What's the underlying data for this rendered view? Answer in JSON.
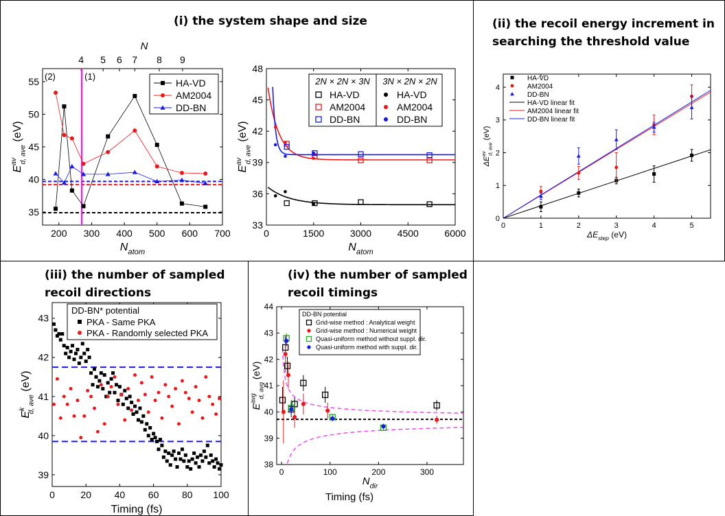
{
  "panels": {
    "p1": {
      "title": "(i) the system shape and size"
    },
    "p2": {
      "title_line1": "(ii) the recoil energy increment in",
      "title_line2": "searching the threshold value"
    },
    "p3": {
      "title_line1": "(iii) the number of sampled",
      "title_line2": "recoil directions"
    },
    "p4": {
      "title_line1": "(iv) the number of sampled",
      "title_line2": "recoil timings"
    }
  },
  "colors": {
    "black": "#000000",
    "red": "#e8191c",
    "blue": "#1a1adc",
    "magenta": "#e21bd8",
    "pink": "#ee55ee",
    "green": "#22aa22",
    "dashblue": "#1a1adc"
  },
  "chart_data": [
    {
      "id": "c1",
      "type": "line",
      "xlabel": "N",
      "xlabel_sub": "atom",
      "ylabel": "E",
      "ylabel_sub": "d, ave",
      "ylabel_sup": "av",
      "ylabel_unit": "(eV)",
      "xlim": [
        150,
        700
      ],
      "ylim": [
        33,
        57
      ],
      "xticks": [
        200,
        300,
        400,
        500,
        600,
        700
      ],
      "yticks": [
        35,
        40,
        45,
        50,
        55
      ],
      "top_axis": {
        "label": "N",
        "ticks": [
          {
            "x": 268,
            "label": "4"
          },
          {
            "x": 335,
            "label": "5"
          },
          {
            "x": 385,
            "label": "6"
          },
          {
            "x": 432,
            "label": "7"
          },
          {
            "x": 507,
            "label": "8"
          },
          {
            "x": 578,
            "label": "9"
          }
        ]
      },
      "region_labels": [
        "(2)",
        "(1)"
      ],
      "vline_x": 270,
      "hlines": [
        {
          "y": 34.9,
          "color": "black"
        },
        {
          "y": 39.2,
          "color": "red"
        },
        {
          "y": 39.7,
          "color": "blue"
        }
      ],
      "series": [
        {
          "name": "HA-VD",
          "color": "black",
          "marker": "square",
          "x": [
            190,
            216,
            240,
            275,
            350,
            432,
            500,
            576,
            648
          ],
          "y": [
            35.5,
            51.2,
            38.3,
            35.9,
            46.6,
            52.8,
            45.3,
            36.3,
            35.8
          ]
        },
        {
          "name": "AM2004",
          "color": "red",
          "marker": "circle",
          "x": [
            190,
            216,
            240,
            275,
            350,
            432,
            500,
            576,
            648
          ],
          "y": [
            53.3,
            46.8,
            46.3,
            42.4,
            44.2,
            47.5,
            42.0,
            41.0,
            40.9
          ]
        },
        {
          "name": "DD-BN",
          "color": "blue",
          "marker": "triangle",
          "x": [
            190,
            216,
            240,
            275,
            350,
            432,
            500,
            576,
            648
          ],
          "y": [
            40.9,
            39.5,
            42.0,
            40.8,
            40.8,
            41.1,
            39.7,
            39.9,
            39.4
          ]
        }
      ]
    },
    {
      "id": "c2",
      "type": "scatter",
      "xlabel": "N",
      "xlabel_sub": "atom",
      "ylabel": "E",
      "ylabel_sub": "d, ave",
      "ylabel_sup": "av",
      "ylabel_unit": "(eV)",
      "xlim": [
        0,
        6000
      ],
      "ylim": [
        33,
        48
      ],
      "xticks": [
        0,
        1500,
        3000,
        4500,
        6000
      ],
      "yticks": [
        33,
        36,
        39,
        42,
        45,
        48
      ],
      "legend_header": [
        "2N × 2N × 3N",
        "3N × 2N × 2N"
      ],
      "series": [
        {
          "name": "HA-VD",
          "color": "black",
          "marker": "open-square",
          "group": 1,
          "x": [
            648,
            1536,
            3000,
            5184
          ],
          "y": [
            35.1,
            35.1,
            35.2,
            35.0
          ]
        },
        {
          "name": "AM2004",
          "color": "red",
          "marker": "open-square",
          "group": 1,
          "x": [
            648,
            1536,
            3000,
            5184
          ],
          "y": [
            40.8,
            39.6,
            39.2,
            39.2
          ]
        },
        {
          "name": "DD-BN",
          "color": "blue",
          "marker": "open-square",
          "group": 1,
          "x": [
            648,
            1536,
            3000,
            5184
          ],
          "y": [
            40.5,
            39.9,
            39.8,
            39.7
          ]
        },
        {
          "name": "HA-VD",
          "color": "black",
          "marker": "dot",
          "group": 2,
          "x": [
            288,
            600,
            1500
          ],
          "y": [
            35.8,
            36.2,
            35.0
          ]
        },
        {
          "name": "AM2004",
          "color": "red",
          "marker": "dot",
          "group": 2,
          "x": [
            288,
            600,
            1500
          ],
          "y": [
            42.4,
            40.9,
            39.4
          ]
        },
        {
          "name": "DD-BN",
          "color": "blue",
          "marker": "dot",
          "group": 2,
          "x": [
            288,
            600,
            1500
          ],
          "y": [
            40.7,
            39.6,
            39.9
          ]
        }
      ],
      "fits": [
        {
          "color": "black",
          "a": 34.95,
          "b": 1.8,
          "tau": 700
        },
        {
          "color": "red",
          "a": 39.25,
          "b": 8.0,
          "tau": 350
        },
        {
          "color": "blue",
          "a": 39.75,
          "b": 60,
          "tau": 90
        }
      ]
    },
    {
      "id": "c3",
      "type": "scatter",
      "xlabel": "ΔE",
      "xlabel_sub": "step",
      "xlabel_unit": "(eV)",
      "ylabel": "ΔE",
      "ylabel_sub": "d, ave",
      "ylabel_sup": "av",
      "ylabel_unit": "(eV)",
      "xlim": [
        0,
        5.5
      ],
      "ylim": [
        0,
        4.4
      ],
      "xticks": [
        0,
        1,
        2,
        3,
        4,
        5
      ],
      "yticks": [
        0,
        1,
        2,
        3,
        4
      ],
      "series": [
        {
          "name": "HA-VD",
          "color": "black",
          "marker": "square",
          "x": [
            1,
            2,
            3,
            4,
            5
          ],
          "y": [
            0.35,
            0.77,
            1.15,
            1.35,
            1.92
          ],
          "err": [
            0.15,
            0.12,
            0.1,
            0.25,
            0.18
          ]
        },
        {
          "name": "AM2004",
          "color": "red",
          "marker": "circle",
          "x": [
            1,
            2,
            3,
            4,
            5
          ],
          "y": [
            0.82,
            1.38,
            1.55,
            2.85,
            3.72
          ],
          "err": [
            0.15,
            0.2,
            0.45,
            0.3,
            0.35
          ]
        },
        {
          "name": "DD-BN",
          "color": "blue",
          "marker": "triangle",
          "x": [
            1,
            2,
            3,
            4,
            5
          ],
          "y": [
            0.67,
            1.9,
            2.4,
            2.78,
            3.38
          ],
          "err": [
            0.1,
            0.25,
            0.3,
            0.15,
            0.35
          ]
        }
      ],
      "fits": [
        {
          "name": "HA-VD linear fit",
          "color": "black",
          "slope": 0.38
        },
        {
          "name": "AM2004 linear fit",
          "color": "red",
          "slope": 0.7
        },
        {
          "name": "DD-BN linear fit",
          "color": "blue",
          "slope": 0.71
        }
      ]
    },
    {
      "id": "c4",
      "type": "scatter",
      "xlabel": "Timing (fs)",
      "ylabel": "E",
      "ylabel_sub": "d, ave",
      "ylabel_sup": "k",
      "ylabel_unit": "(eV)",
      "xlim": [
        0,
        100
      ],
      "ylim": [
        38.7,
        43.4
      ],
      "xticks": [
        0,
        20,
        40,
        60,
        80,
        100
      ],
      "yticks": [
        39,
        40,
        41,
        42,
        43
      ],
      "legend_title": "DD-BN* potential",
      "hlines": [
        {
          "y": 41.75,
          "color": "blue"
        },
        {
          "y": 39.85,
          "color": "blue"
        }
      ],
      "series": [
        {
          "name": "PKA - Same PKA",
          "color": "black",
          "marker": "square",
          "x": [
            1,
            2,
            3,
            4,
            5,
            6,
            7,
            8,
            9,
            10,
            11,
            12,
            13,
            14,
            15,
            16,
            17,
            18,
            19,
            20,
            21,
            22,
            23,
            24,
            25,
            26,
            27,
            28,
            29,
            30,
            31,
            32,
            33,
            34,
            35,
            36,
            37,
            38,
            39,
            40,
            41,
            42,
            43,
            44,
            45,
            46,
            47,
            48,
            49,
            50,
            51,
            52,
            53,
            54,
            55,
            56,
            57,
            58,
            59,
            60,
            61,
            62,
            63,
            64,
            65,
            66,
            67,
            68,
            69,
            70,
            71,
            72,
            73,
            74,
            75,
            76,
            77,
            78,
            79,
            80,
            81,
            82,
            83,
            84,
            85,
            86,
            87,
            88,
            89,
            90,
            91,
            92,
            93,
            94,
            95,
            96,
            97,
            98,
            99,
            100
          ],
          "y": [
            42.85,
            42.7,
            42.55,
            42.6,
            42.45,
            42.6,
            42.3,
            42.1,
            42.25,
            42.0,
            42.15,
            42.3,
            41.95,
            42.1,
            42.2,
            41.85,
            42.0,
            42.35,
            42.1,
            41.9,
            42.2,
            42.0,
            41.6,
            41.3,
            41.7,
            41.5,
            41.25,
            41.4,
            41.6,
            41.2,
            41.55,
            41.0,
            41.35,
            41.1,
            41.45,
            41.6,
            41.1,
            41.3,
            40.9,
            41.25,
            41.05,
            40.8,
            41.15,
            40.95,
            40.7,
            41.0,
            40.85,
            40.55,
            40.75,
            40.6,
            40.4,
            40.7,
            40.35,
            40.5,
            40.15,
            40.3,
            40.0,
            40.2,
            39.9,
            40.05,
            39.95,
            39.85,
            39.65,
            39.9,
            39.75,
            39.45,
            39.6,
            39.35,
            39.55,
            39.25,
            39.5,
            39.6,
            39.4,
            39.2,
            39.55,
            39.4,
            39.65,
            39.35,
            39.5,
            39.2,
            39.35,
            39.15,
            39.4,
            39.55,
            39.3,
            39.45,
            39.2,
            39.5,
            39.35,
            39.6,
            39.45,
            39.75,
            39.3,
            39.5,
            39.35,
            39.2,
            39.4,
            39.3,
            39.15,
            39.25
          ]
        },
        {
          "name": "PKA - Randomly selected PKA",
          "color": "red",
          "marker": "circle",
          "x": [
            1,
            3,
            5,
            7,
            9,
            11,
            13,
            15,
            17,
            19,
            21,
            23,
            25,
            27,
            29,
            31,
            33,
            35,
            37,
            39,
            41,
            43,
            45,
            47,
            49,
            51,
            53,
            55,
            57,
            59,
            61,
            63,
            65,
            67,
            69,
            71,
            73,
            75,
            77,
            79,
            81,
            83,
            85,
            87,
            89,
            91,
            93,
            95,
            97,
            99
          ],
          "y": [
            40.8,
            41.45,
            40.45,
            41.0,
            40.8,
            41.2,
            40.5,
            40.9,
            39.95,
            40.5,
            41.15,
            41.0,
            40.7,
            40.1,
            41.3,
            40.3,
            41.0,
            41.25,
            41.5,
            40.8,
            41.05,
            40.4,
            41.2,
            40.65,
            41.55,
            40.9,
            41.35,
            41.05,
            40.6,
            41.5,
            40.9,
            41.1,
            40.45,
            41.3,
            41.0,
            40.75,
            41.2,
            40.3,
            41.4,
            41.1,
            40.95,
            40.6,
            41.25,
            40.9,
            40.45,
            41.5,
            41.0,
            40.8,
            40.55,
            40.95
          ]
        }
      ]
    },
    {
      "id": "c5",
      "type": "scatter",
      "xlabel": "N",
      "xlabel_sub": "dir",
      "xlabel2": "Timing (fs)",
      "ylabel": "E",
      "ylabel_sub": "d, avg",
      "ylabel_sup": "avg",
      "ylabel_unit": "(eV)",
      "xlim": [
        -10,
        375
      ],
      "ylim": [
        38,
        44
      ],
      "xticks": [
        0,
        100,
        200,
        300
      ],
      "yticks": [
        38,
        39,
        40,
        41,
        42,
        43,
        44
      ],
      "legend_title": "DD-BN potential",
      "hline_y": 39.72,
      "series": [
        {
          "name": "Grid-wise method : Analytical weight",
          "color": "black",
          "marker": "open-square",
          "x": [
            2,
            8,
            12,
            20,
            27,
            45,
            90,
            320
          ],
          "y": [
            40.45,
            42.45,
            41.75,
            40.1,
            40.3,
            41.1,
            40.65,
            40.25
          ],
          "err": [
            0.5,
            0.4,
            0.35,
            0.3,
            0.25,
            0.3,
            0.3,
            0.2
          ]
        },
        {
          "name": "Grid-wise method : Numerical weight",
          "color": "red",
          "marker": "dot",
          "x": [
            4,
            8,
            14,
            27,
            45,
            95,
            320
          ],
          "y": [
            40.0,
            42.2,
            41.4,
            39.8,
            40.3,
            40.05,
            39.7
          ],
          "err": [
            1.2,
            0.7,
            0.5,
            0.4,
            0.4,
            0.3,
            0.15
          ]
        },
        {
          "name": "Quasi-uniform method without suppl. dir.",
          "color": "green",
          "marker": "open-square",
          "x": [
            10,
            20,
            105,
            210
          ],
          "y": [
            42.8,
            40.15,
            39.8,
            39.4
          ],
          "err": [
            0.2,
            0.3,
            0.1,
            0.1
          ]
        },
        {
          "name": "Quasi-uniform method with suppl. dir.",
          "color": "blue",
          "marker": "dot",
          "x": [
            10,
            20,
            105,
            210
          ],
          "y": [
            42.7,
            40.1,
            39.75,
            39.45
          ],
          "err": [
            0.2,
            0.2,
            0.1,
            0.1
          ]
        }
      ]
    }
  ]
}
